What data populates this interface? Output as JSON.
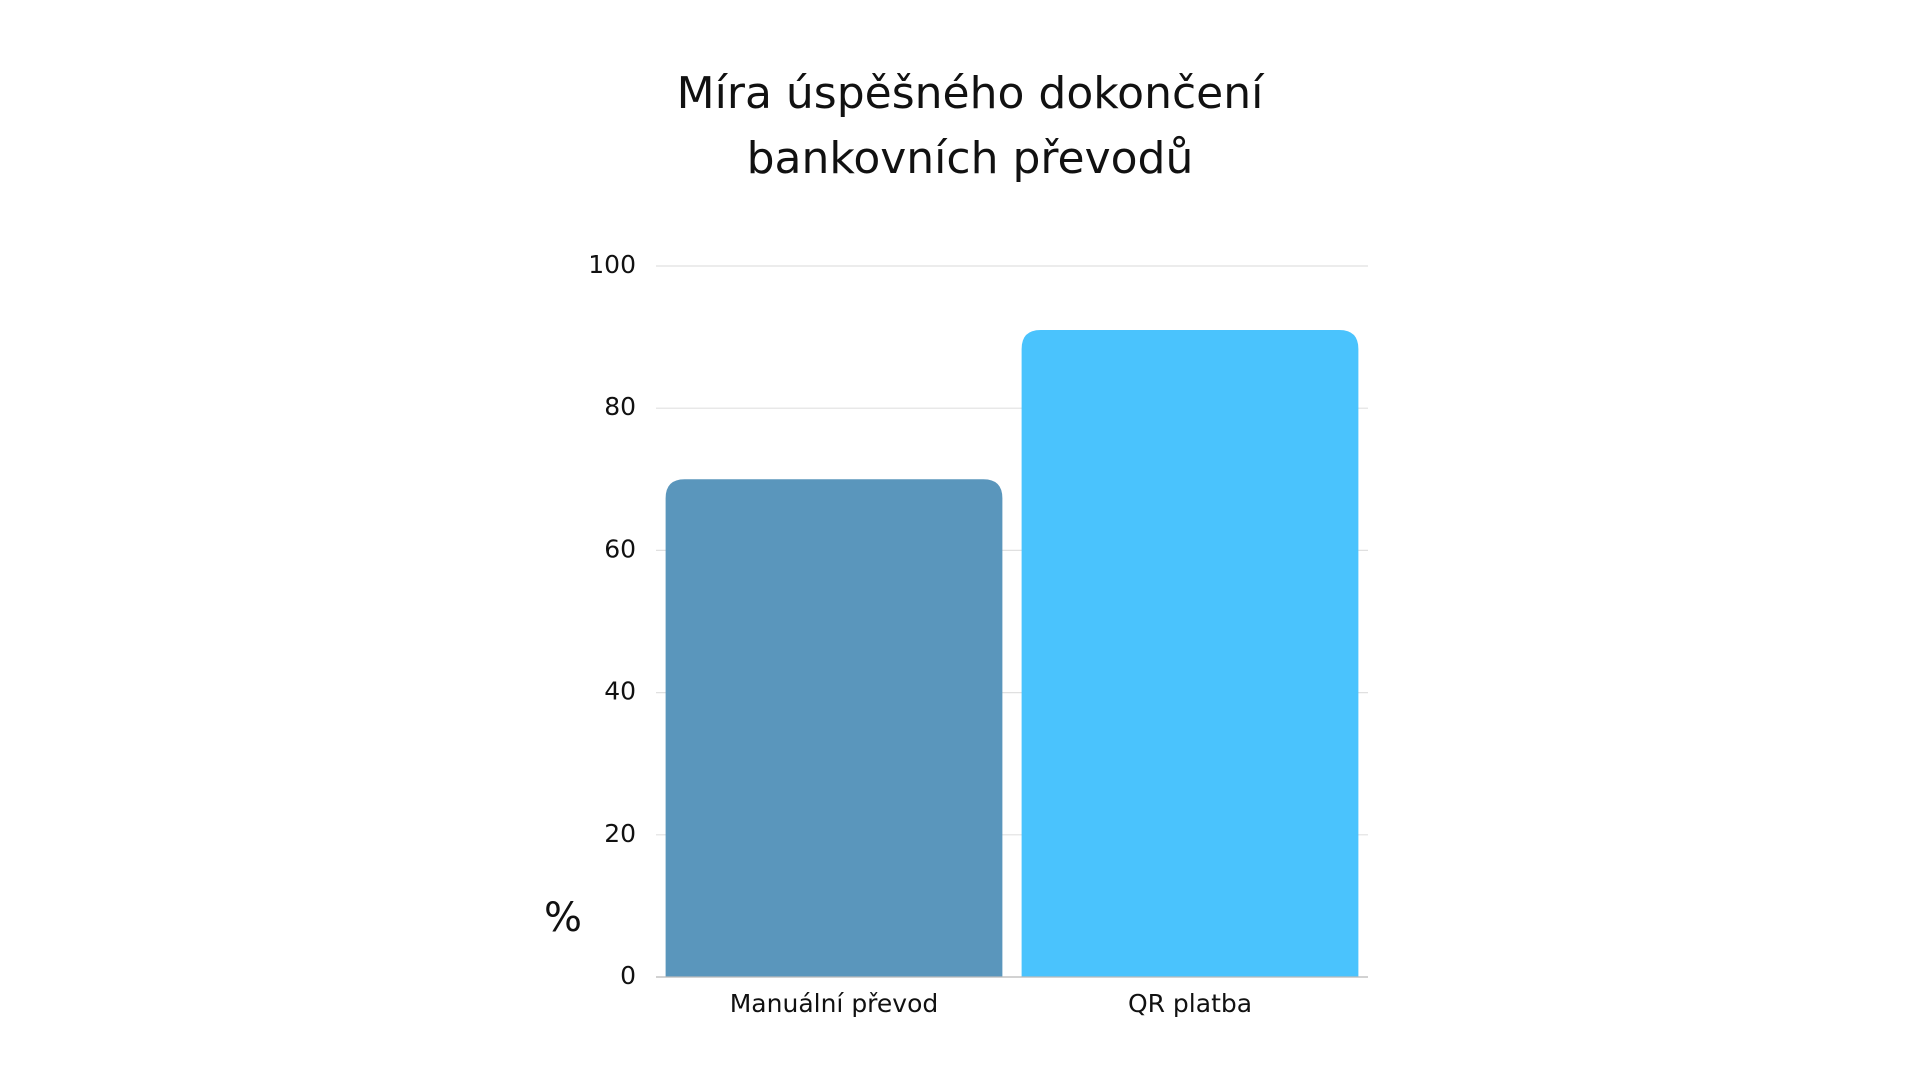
{
  "chart_data": {
    "type": "bar",
    "title": [
      "Míra úspěšného dokončení",
      "bankovních převodů"
    ],
    "y_label": "%",
    "categories": [
      "Manuální převod",
      "QR platba"
    ],
    "values": [
      70,
      91
    ],
    "colors": [
      "#5a96bc",
      "#4ac3fd"
    ],
    "ylim": [
      0,
      100
    ],
    "yticks": [
      0,
      20,
      40,
      60,
      80,
      100
    ],
    "grid": true
  }
}
